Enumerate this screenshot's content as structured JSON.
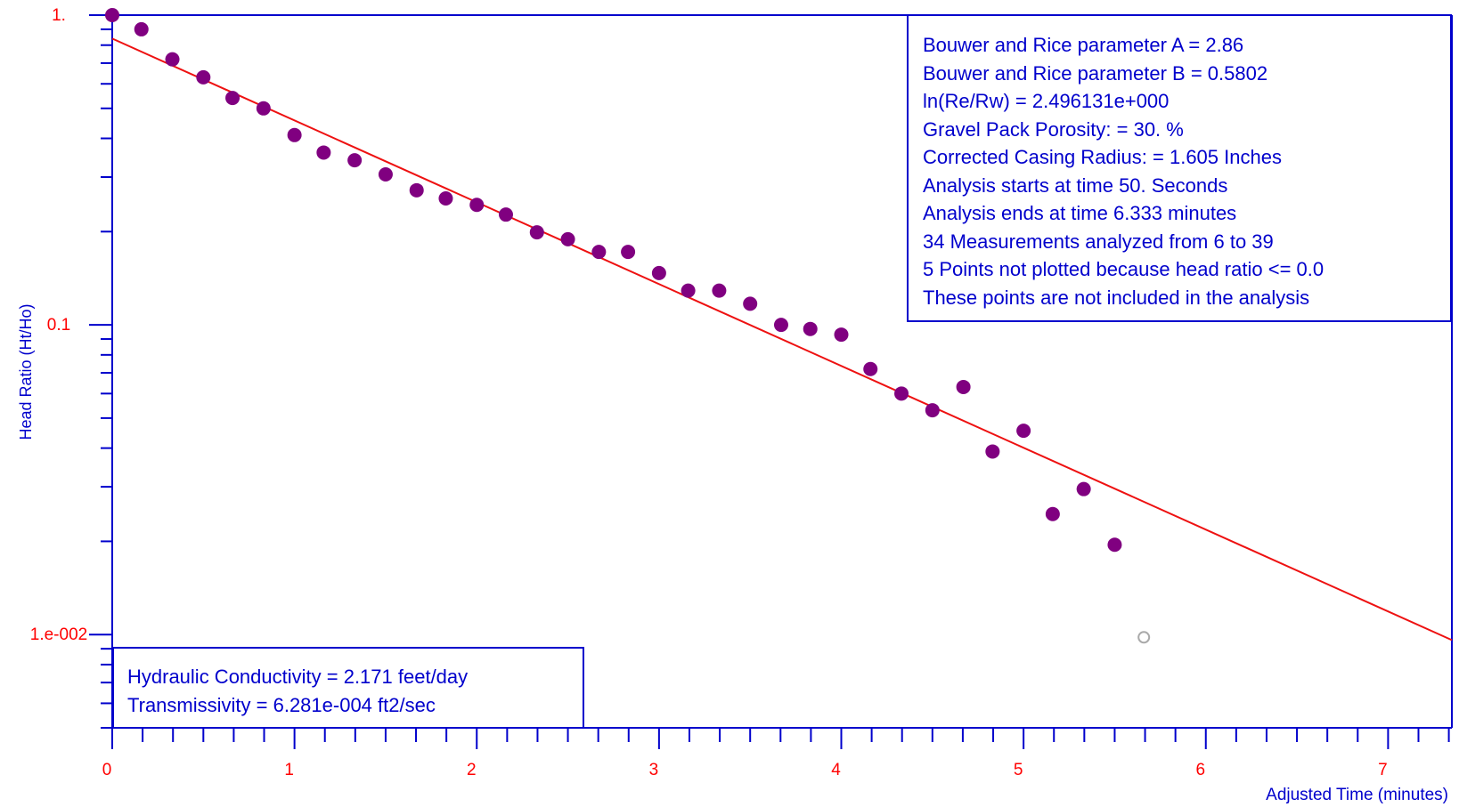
{
  "chart_data": {
    "type": "scatter",
    "title": "",
    "xlabel": "Adjusted Time (minutes)",
    "ylabel": "Head Ratio (Ht/Ho)",
    "xlim": [
      0,
      7.35
    ],
    "ylim": [
      0.005,
      1
    ],
    "x_scale": "linear",
    "y_scale": "log",
    "x_ticks": [
      0,
      1,
      2,
      3,
      4,
      5,
      6,
      7
    ],
    "x_tick_labels": [
      "0",
      "1",
      "2",
      "3",
      "4",
      "5",
      "6",
      "7"
    ],
    "y_ticks": [
      0.01,
      0.1,
      1
    ],
    "y_tick_labels": [
      "1.e-002",
      "0.1",
      "1."
    ],
    "grid": false,
    "legend": "none",
    "colors": {
      "axes": "#0000cc",
      "tick_labels": "#ff0000",
      "points": "#800080",
      "fit_line": "#ee1111",
      "excluded_point": "#aaaaaa"
    },
    "series": [
      {
        "type": "scatter",
        "x": [
          0,
          0.16,
          0.33,
          0.5,
          0.66,
          0.83,
          1,
          1.16,
          1.33,
          1.5,
          1.67,
          1.83,
          2,
          2.16,
          2.33,
          2.5,
          2.67,
          2.83,
          3,
          3.16,
          3.33,
          3.5,
          3.67,
          3.83,
          4,
          4.16,
          4.33,
          4.5,
          4.67,
          4.83,
          5,
          5.16,
          5.33,
          5.5
        ],
        "y": [
          1,
          0.9,
          0.72,
          0.63,
          0.54,
          0.5,
          0.41,
          0.36,
          0.34,
          0.306,
          0.272,
          0.256,
          0.244,
          0.227,
          0.199,
          0.189,
          0.172,
          0.172,
          0.147,
          0.129,
          0.129,
          0.117,
          0.1,
          0.097,
          0.093,
          0.072,
          0.06,
          0.053,
          0.063,
          0.039,
          0.0455,
          0.0245,
          0.0295,
          0.0195
        ]
      },
      {
        "type": "scatter",
        "excluded": true,
        "x": [
          5.66
        ],
        "y": [
          0.0098
        ]
      },
      {
        "type": "line",
        "x": [
          0,
          7.35
        ],
        "y": [
          0.84,
          0.0096
        ]
      }
    ]
  },
  "parameters": [
    "Bouwer and Rice parameter A = 2.86",
    "Bouwer and Rice parameter B = 0.5802",
    "ln(Re/Rw) = 2.496131e+000",
    "Gravel Pack Porosity: = 30. %",
    "Corrected Casing Radius: = 1.605 Inches",
    "Analysis starts at time 50. Seconds",
    "Analysis ends at time 6.333 minutes",
    "34 Measurements analyzed from 6 to 39",
    "5 Points not plotted because head ratio <= 0.0",
    "These points are not included in the analysis"
  ],
  "results": [
    "Hydraulic Conductivity = 2.171 feet/day",
    "Transmissivity = 6.281e-004 ft2/sec"
  ]
}
